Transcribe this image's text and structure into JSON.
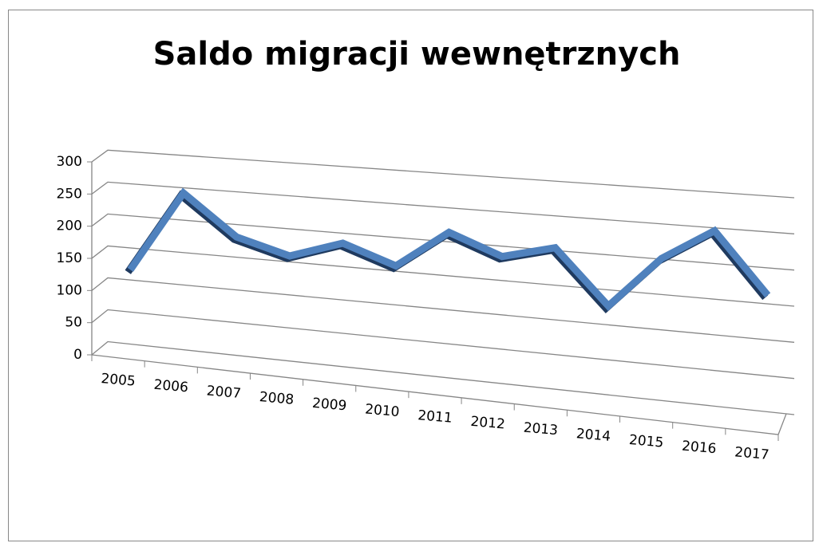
{
  "chart_data": {
    "type": "line",
    "title": "Saldo migracji wewnętrznych",
    "categories": [
      "2005",
      "2006",
      "2007",
      "2008",
      "2009",
      "2010",
      "2011",
      "2012",
      "2013",
      "2014",
      "2015",
      "2016",
      "2017"
    ],
    "series": [
      {
        "name": "Saldo migracji wewnętrznych",
        "color": "#4f81bd",
        "values": [
          116,
          242,
          181,
          159,
          185,
          158,
          214,
          185,
          204,
          127,
          201,
          246,
          162
        ]
      }
    ],
    "ylim": [
      0,
      300
    ],
    "yticks": [
      0,
      50,
      100,
      150,
      200,
      250,
      300
    ],
    "grid": true
  }
}
